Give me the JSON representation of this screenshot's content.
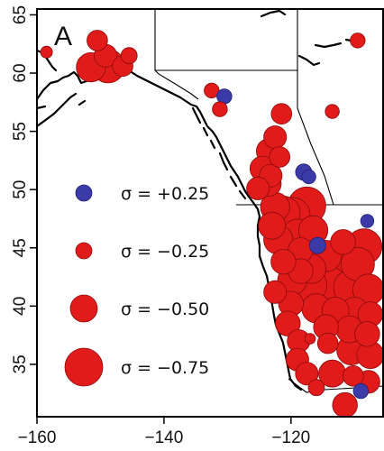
{
  "panel_label": "A",
  "colors": {
    "positive": "#3a3aa8",
    "negative": "#e11a1a",
    "negative_stroke": "#8a0d0d",
    "positive_stroke": "#20207a"
  },
  "legend": [
    {
      "label": "σ = +0.25",
      "sigma": 0.25
    },
    {
      "label": "σ = −0.25",
      "sigma": -0.25
    },
    {
      "label": "σ = −0.50",
      "sigma": -0.5
    },
    {
      "label": "σ = −0.75",
      "sigma": -0.75
    }
  ],
  "axes": {
    "x_ticks": [
      {
        "value": -160,
        "label": "−160"
      },
      {
        "value": -140,
        "label": "−140"
      },
      {
        "value": -120,
        "label": "−120"
      }
    ],
    "y_ticks": [
      {
        "value": 35,
        "label": "35"
      },
      {
        "value": 40,
        "label": "40"
      },
      {
        "value": 45,
        "label": "45"
      },
      {
        "value": 50,
        "label": "50"
      },
      {
        "value": 55,
        "label": "55"
      },
      {
        "value": 60,
        "label": "60"
      },
      {
        "value": 65,
        "label": "65"
      }
    ],
    "xlim": [
      -160,
      -105.5
    ],
    "ylim": [
      30.5,
      65.5
    ]
  },
  "chart_data": {
    "type": "scatter",
    "xlabel": "",
    "ylabel": "",
    "points": [
      {
        "lon": -150.5,
        "lat": 62.8,
        "sigma": -0.35
      },
      {
        "lon": -149.2,
        "lat": 61.5,
        "sigma": -0.4
      },
      {
        "lon": -151.5,
        "lat": 60.5,
        "sigma": -0.55
      },
      {
        "lon": -148.8,
        "lat": 60.6,
        "sigma": -0.65
      },
      {
        "lon": -145.5,
        "lat": 61.5,
        "sigma": -0.25
      },
      {
        "lon": -146.5,
        "lat": 60.6,
        "sigma": -0.35
      },
      {
        "lon": -158.5,
        "lat": 61.8,
        "sigma": -0.15
      },
      {
        "lon": -132.5,
        "lat": 58.5,
        "sigma": -0.22
      },
      {
        "lon": -130.5,
        "lat": 58.0,
        "sigma": 0.22
      },
      {
        "lon": -131.2,
        "lat": 56.9,
        "sigma": -0.22
      },
      {
        "lon": -109.5,
        "lat": 62.8,
        "sigma": -0.22
      },
      {
        "lon": -113.5,
        "lat": 56.7,
        "sigma": -0.2
      },
      {
        "lon": -121.5,
        "lat": 56.5,
        "sigma": -0.35
      },
      {
        "lon": -122.5,
        "lat": 54.5,
        "sigma": -0.4
      },
      {
        "lon": -123.5,
        "lat": 53.3,
        "sigma": -0.45
      },
      {
        "lon": -121.8,
        "lat": 52.8,
        "sigma": -0.35
      },
      {
        "lon": -124.5,
        "lat": 51.8,
        "sigma": -0.45
      },
      {
        "lon": -123.2,
        "lat": 51.2,
        "sigma": -0.4
      },
      {
        "lon": -125.2,
        "lat": 50.1,
        "sigma": -0.4
      },
      {
        "lon": -123.5,
        "lat": 50.5,
        "sigma": -0.45
      },
      {
        "lon": -118.0,
        "lat": 51.5,
        "sigma": 0.25
      },
      {
        "lon": -117.2,
        "lat": 51.1,
        "sigma": 0.2
      },
      {
        "lon": -122.5,
        "lat": 48.5,
        "sigma": -0.55
      },
      {
        "lon": -121.2,
        "lat": 48.0,
        "sigma": -0.65
      },
      {
        "lon": -117.5,
        "lat": 48.6,
        "sigma": -0.75
      },
      {
        "lon": -119.8,
        "lat": 47.8,
        "sigma": -0.7
      },
      {
        "lon": -123.0,
        "lat": 46.9,
        "sigma": -0.5
      },
      {
        "lon": -119.0,
        "lat": 46.2,
        "sigma": -0.55
      },
      {
        "lon": -116.5,
        "lat": 46.5,
        "sigma": -0.55
      },
      {
        "lon": -122.0,
        "lat": 45.7,
        "sigma": -0.55
      },
      {
        "lon": -118.5,
        "lat": 44.8,
        "sigma": -0.45
      },
      {
        "lon": -115.8,
        "lat": 45.2,
        "sigma": 0.25
      },
      {
        "lon": -114.5,
        "lat": 44.3,
        "sigma": -0.6
      },
      {
        "lon": -111.8,
        "lat": 45.5,
        "sigma": -0.45
      },
      {
        "lon": -108.5,
        "lat": 45.1,
        "sigma": -0.7
      },
      {
        "lon": -109.5,
        "lat": 43.6,
        "sigma": -0.65
      },
      {
        "lon": -112.5,
        "lat": 43.4,
        "sigma": -0.7
      },
      {
        "lon": -116.8,
        "lat": 43.2,
        "sigma": -0.55
      },
      {
        "lon": -118.5,
        "lat": 43.0,
        "sigma": -0.45
      },
      {
        "lon": -121.2,
        "lat": 43.8,
        "sigma": -0.45
      },
      {
        "lon": -119.8,
        "lat": 42.2,
        "sigma": -0.55
      },
      {
        "lon": -117.0,
        "lat": 41.8,
        "sigma": -0.65
      },
      {
        "lon": -113.8,
        "lat": 41.8,
        "sigma": -0.7
      },
      {
        "lon": -110.5,
        "lat": 41.6,
        "sigma": -0.7
      },
      {
        "lon": -107.8,
        "lat": 41.4,
        "sigma": -0.6
      },
      {
        "lon": -122.5,
        "lat": 41.2,
        "sigma": -0.4
      },
      {
        "lon": -120.0,
        "lat": 40.2,
        "sigma": -0.45
      },
      {
        "lon": -116.0,
        "lat": 39.8,
        "sigma": -0.55
      },
      {
        "lon": -113.0,
        "lat": 39.6,
        "sigma": -0.5
      },
      {
        "lon": -110.0,
        "lat": 39.5,
        "sigma": -0.55
      },
      {
        "lon": -107.5,
        "lat": 39.3,
        "sigma": -0.45
      },
      {
        "lon": -120.5,
        "lat": 38.5,
        "sigma": -0.45
      },
      {
        "lon": -114.5,
        "lat": 38.2,
        "sigma": -0.45
      },
      {
        "lon": -110.8,
        "lat": 38.0,
        "sigma": -0.5
      },
      {
        "lon": -108.0,
        "lat": 37.6,
        "sigma": -0.45
      },
      {
        "lon": -118.8,
        "lat": 37.0,
        "sigma": -0.4
      },
      {
        "lon": -114.2,
        "lat": 36.8,
        "sigma": -0.35
      },
      {
        "lon": -110.5,
        "lat": 36.2,
        "sigma": -0.55
      },
      {
        "lon": -107.5,
        "lat": 35.8,
        "sigma": -0.5
      },
      {
        "lon": -119.0,
        "lat": 35.4,
        "sigma": -0.4
      },
      {
        "lon": -117.5,
        "lat": 34.2,
        "sigma": -0.4
      },
      {
        "lon": -113.5,
        "lat": 34.2,
        "sigma": -0.5
      },
      {
        "lon": -110.2,
        "lat": 34.0,
        "sigma": -0.35
      },
      {
        "lon": -107.8,
        "lat": 33.5,
        "sigma": -0.4
      },
      {
        "lon": -116.0,
        "lat": 33.0,
        "sigma": -0.25
      },
      {
        "lon": -109.0,
        "lat": 32.7,
        "sigma": 0.22
      },
      {
        "lon": -111.5,
        "lat": 31.5,
        "sigma": -0.45
      },
      {
        "lon": -117.0,
        "lat": 37.2,
        "sigma": -0.12
      },
      {
        "lon": -108.0,
        "lat": 47.3,
        "sigma": 0.18
      }
    ]
  }
}
